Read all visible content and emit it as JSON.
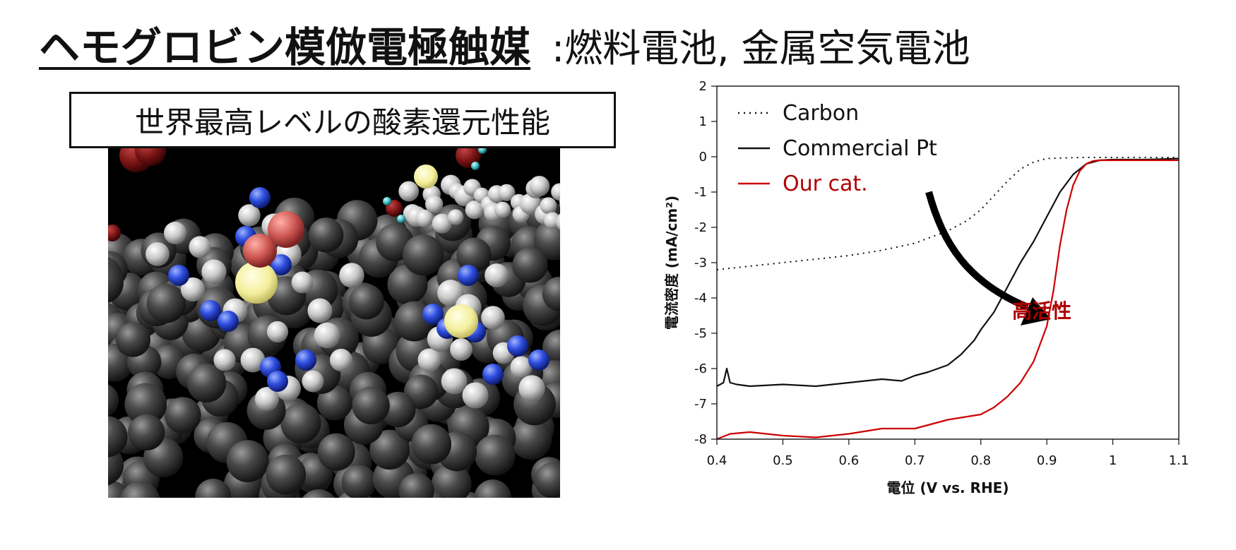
{
  "header": {
    "title": "ヘモグロビン模倣電極触媒",
    "subtitle": ":燃料電池, 金属空気電池"
  },
  "badge": {
    "text": "世界最高レベルの酸素還元性能"
  },
  "image": {
    "description_icon": "molecular-model-icon"
  },
  "chart_data": {
    "type": "line",
    "xlabel": "電位 (V vs. RHE)",
    "ylabel": "電流密度 (mA/cm²)",
    "xlim": [
      0.4,
      1.1
    ],
    "ylim": [
      -8,
      2
    ],
    "xticks": [
      "0.4",
      "0.5",
      "0.6",
      "0.7",
      "0.8",
      "0.9",
      "1",
      "1.1"
    ],
    "yticks": [
      "2",
      "1",
      "0",
      "-1",
      "-2",
      "-3",
      "-4",
      "-5",
      "-6",
      "-7",
      "-8"
    ],
    "grid": false,
    "legend_position": "top-left",
    "annotation": {
      "text": "高活性",
      "color": "#b00000"
    },
    "series": [
      {
        "name": "Carbon",
        "color": "#111111",
        "style": "dotted",
        "x": [
          0.4,
          0.45,
          0.5,
          0.55,
          0.6,
          0.65,
          0.7,
          0.75,
          0.78,
          0.8,
          0.82,
          0.84,
          0.86,
          0.88,
          0.9,
          0.95,
          1.0,
          1.05,
          1.1
        ],
        "y": [
          -3.2,
          -3.1,
          -3.0,
          -2.9,
          -2.8,
          -2.65,
          -2.45,
          -2.1,
          -1.8,
          -1.5,
          -1.1,
          -0.7,
          -0.35,
          -0.15,
          -0.05,
          -0.02,
          -0.02,
          -0.02,
          -0.02
        ]
      },
      {
        "name": "Commercial Pt",
        "color": "#111111",
        "style": "solid",
        "x": [
          0.4,
          0.41,
          0.415,
          0.42,
          0.43,
          0.45,
          0.5,
          0.55,
          0.6,
          0.65,
          0.68,
          0.7,
          0.72,
          0.75,
          0.77,
          0.79,
          0.8,
          0.82,
          0.84,
          0.86,
          0.88,
          0.9,
          0.92,
          0.94,
          0.96,
          0.98,
          1.0,
          1.05,
          1.1
        ],
        "y": [
          -6.5,
          -6.4,
          -6.0,
          -6.4,
          -6.45,
          -6.5,
          -6.45,
          -6.5,
          -6.4,
          -6.3,
          -6.35,
          -6.2,
          -6.1,
          -5.9,
          -5.6,
          -5.2,
          -4.9,
          -4.4,
          -3.7,
          -3.0,
          -2.4,
          -1.7,
          -1.0,
          -0.5,
          -0.2,
          -0.1,
          -0.08,
          -0.08,
          -0.05
        ]
      },
      {
        "name": "Our cat.",
        "color": "#cc0000",
        "style": "solid",
        "x": [
          0.4,
          0.42,
          0.45,
          0.5,
          0.55,
          0.6,
          0.65,
          0.7,
          0.75,
          0.8,
          0.82,
          0.84,
          0.86,
          0.88,
          0.9,
          0.91,
          0.92,
          0.93,
          0.94,
          0.95,
          0.96,
          0.97,
          0.98,
          1.0,
          1.05,
          1.1
        ],
        "y": [
          -8.0,
          -7.85,
          -7.8,
          -7.9,
          -7.95,
          -7.85,
          -7.7,
          -7.7,
          -7.45,
          -7.3,
          -7.1,
          -6.8,
          -6.4,
          -5.8,
          -4.8,
          -3.8,
          -2.5,
          -1.5,
          -0.8,
          -0.4,
          -0.2,
          -0.12,
          -0.1,
          -0.1,
          -0.1,
          -0.1
        ]
      }
    ]
  }
}
